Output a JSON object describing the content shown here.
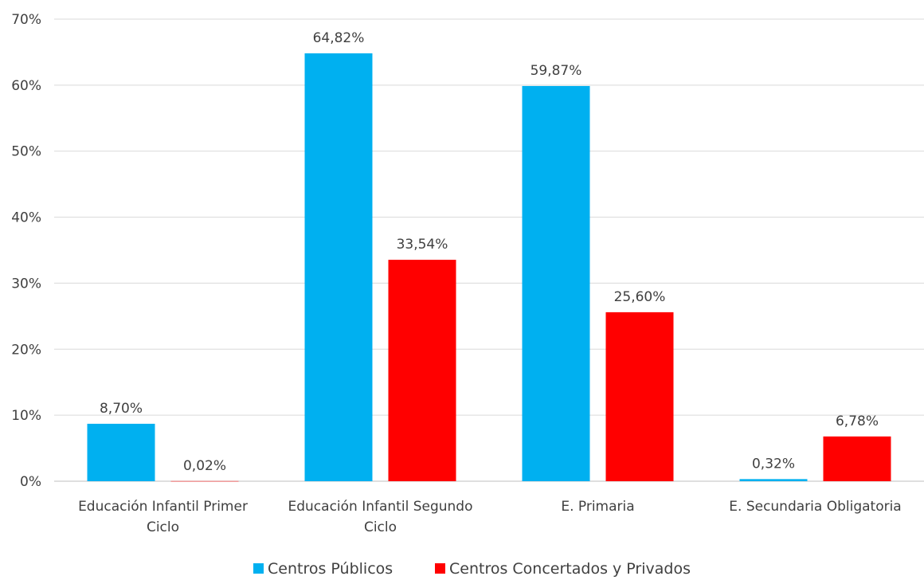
{
  "chart_data": {
    "type": "bar",
    "categories": [
      [
        "Educación Infantil Primer",
        "Ciclo"
      ],
      [
        "Educación Infantil Segundo",
        "Ciclo"
      ],
      [
        "E. Primaria"
      ],
      [
        "E. Secundaria Obligatoria"
      ]
    ],
    "series": [
      {
        "name": "Centros Públicos",
        "color": "#00B0F0",
        "values": [
          8.7,
          64.82,
          59.87,
          0.32
        ],
        "labels": [
          "8,70%",
          "64,82%",
          "59,87%",
          "0,32%"
        ]
      },
      {
        "name": "Centros Concertados y Privados",
        "color": "#FF0000",
        "values": [
          0.02,
          33.54,
          25.6,
          6.78
        ],
        "labels": [
          "0,02%",
          "33,54%",
          "25,60%",
          "6,78%"
        ]
      }
    ],
    "y_ticks": [
      0,
      10,
      20,
      30,
      40,
      50,
      60,
      70
    ],
    "y_tick_labels": [
      "0%",
      "10%",
      "20%",
      "30%",
      "40%",
      "50%",
      "60%",
      "70%"
    ],
    "ylim": [
      0,
      70
    ],
    "gridlines": true,
    "legend_position": "bottom"
  }
}
